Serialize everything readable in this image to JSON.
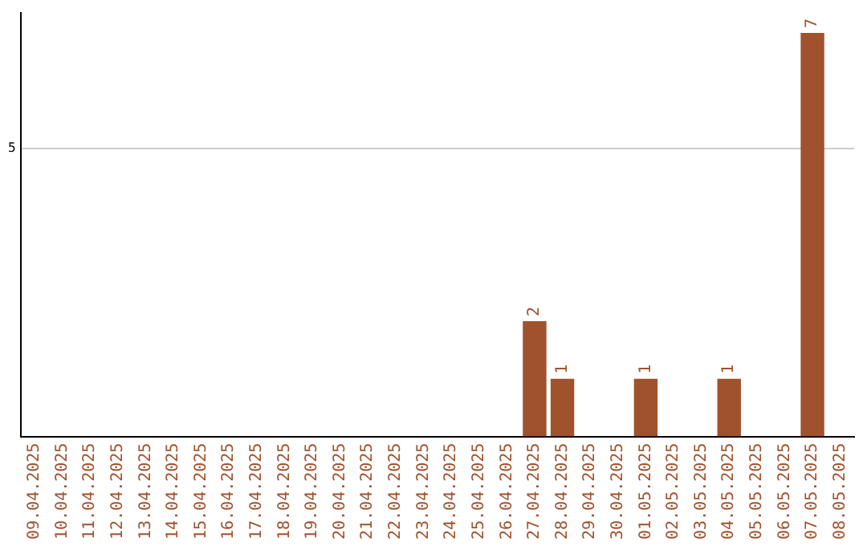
{
  "chart_data": {
    "type": "bar",
    "ylim": [
      0,
      7.35
    ],
    "categories": [
      "09.04.2025",
      "10.04.2025",
      "11.04.2025",
      "12.04.2025",
      "13.04.2025",
      "14.04.2025",
      "15.04.2025",
      "16.04.2025",
      "17.04.2025",
      "18.04.2025",
      "19.04.2025",
      "20.04.2025",
      "21.04.2025",
      "22.04.2025",
      "23.04.2025",
      "24.04.2025",
      "25.04.2025",
      "26.04.2025",
      "27.04.2025",
      "28.04.2025",
      "29.04.2025",
      "30.04.2025",
      "01.05.2025",
      "02.05.2025",
      "03.05.2025",
      "04.05.2025",
      "05.05.2025",
      "06.05.2025",
      "07.05.2025",
      "08.05.2025"
    ],
    "values": [
      null,
      null,
      null,
      null,
      null,
      null,
      null,
      null,
      null,
      null,
      null,
      null,
      null,
      null,
      null,
      null,
      null,
      null,
      2,
      1,
      null,
      null,
      1,
      null,
      null,
      1,
      null,
      null,
      7,
      null
    ],
    "value_labels": [
      null,
      null,
      null,
      null,
      null,
      null,
      null,
      null,
      null,
      null,
      null,
      null,
      null,
      null,
      null,
      null,
      null,
      null,
      "2",
      "1",
      null,
      null,
      "1",
      null,
      null,
      "1",
      null,
      null,
      "7",
      null
    ],
    "color": "#a0522d",
    "yticks": [
      5
    ],
    "grid": "y"
  }
}
